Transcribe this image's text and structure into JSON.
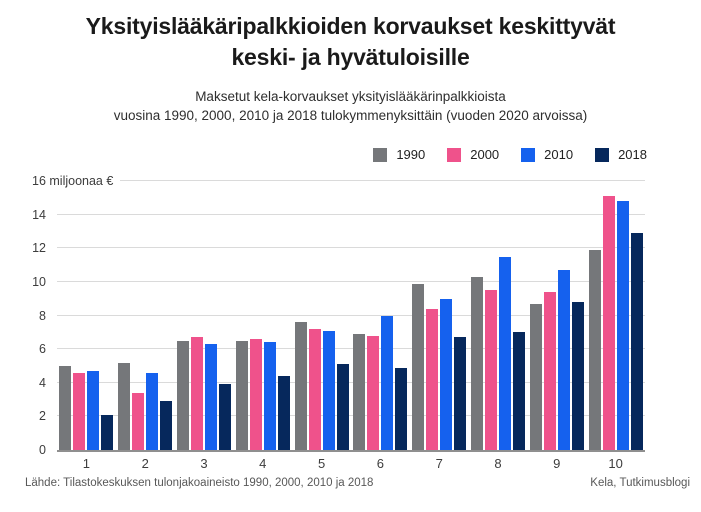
{
  "title": {
    "line1": "Yksityislääkäripalkkioiden korvaukset keskittyvät",
    "line2": "keski- ja hyvätuloisille"
  },
  "subtitle": {
    "line1": "Maksetut kela-korvaukset yksityislääkärinpalkkioista",
    "line2": "vuosina 1990, 2000, 2010 ja 2018 tulokymmenyksittäin (vuoden 2020 arvoissa)"
  },
  "chart_data": {
    "type": "bar",
    "title": "Yksityislääkäripalkkioiden korvaukset keskittyvät keski- ja hyvätuloisille",
    "subtitle": "Maksetut kela-korvaukset yksityislääkärinpalkkioista vuosina 1990, 2000, 2010 ja 2018 tulokymmenyksittäin (vuoden 2020 arvoissa)",
    "categories": [
      "1",
      "2",
      "3",
      "4",
      "5",
      "6",
      "7",
      "8",
      "9",
      "10"
    ],
    "series": [
      {
        "name": "1990",
        "color": "#75777a",
        "values": [
          5.0,
          5.2,
          6.5,
          6.5,
          7.6,
          6.9,
          9.9,
          10.3,
          8.7,
          11.9
        ]
      },
      {
        "name": "2000",
        "color": "#ef528b",
        "values": [
          4.6,
          3.4,
          6.7,
          6.6,
          7.2,
          6.8,
          8.4,
          9.5,
          9.4,
          15.1
        ]
      },
      {
        "name": "2010",
        "color": "#1561ee",
        "values": [
          4.7,
          4.6,
          6.3,
          6.4,
          7.1,
          8.0,
          9.0,
          11.5,
          10.7,
          14.8
        ]
      },
      {
        "name": "2018",
        "color": "#06285c",
        "values": [
          2.1,
          2.9,
          3.9,
          4.4,
          5.1,
          4.9,
          6.7,
          7.0,
          8.8,
          12.9
        ]
      }
    ],
    "xlabel": "",
    "ylabel": "miljoonaa €",
    "ylim": [
      0,
      16
    ],
    "yticks": [
      0,
      2,
      4,
      6,
      8,
      10,
      12,
      14,
      16
    ],
    "ytick_top_label": "16 miljoonaa €",
    "grid": true,
    "gridline_color": "#dadada",
    "axis_color": "#8f8f8f",
    "legend_position": "top-right"
  },
  "footer": {
    "source": "Lähde: Tilastokeskuksen tulonjakoaineisto 1990, 2000, 2010 ja 2018",
    "credit": "Kela, Tutkimusblogi"
  }
}
